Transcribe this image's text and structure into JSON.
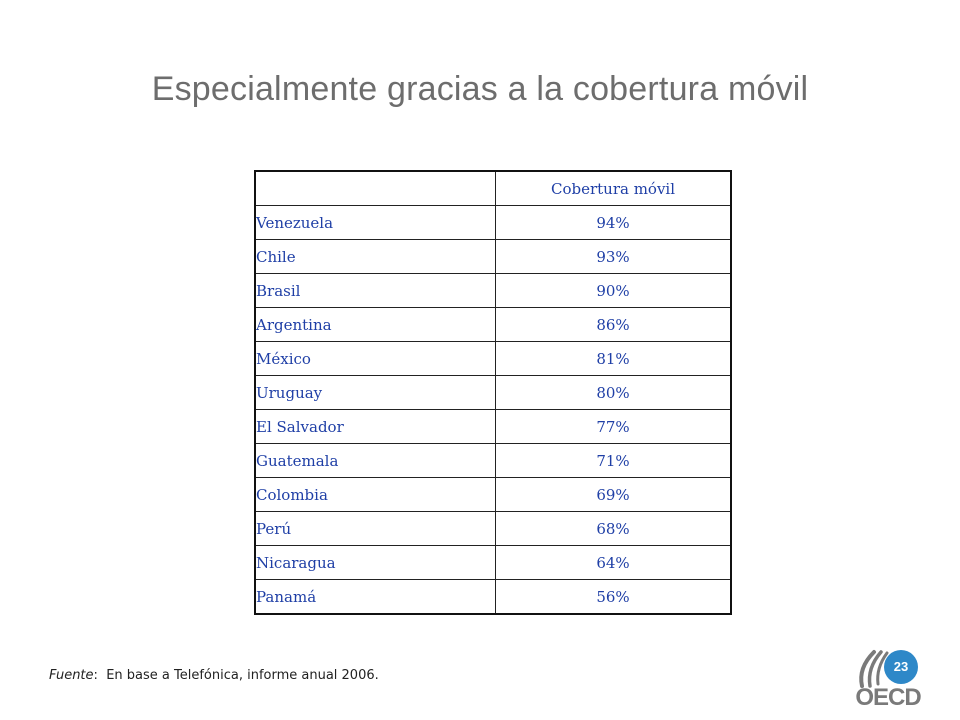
{
  "slide": {
    "title": "Especialmente gracias a la cobertura móvil",
    "page_number": "23"
  },
  "table": {
    "column_header": "Cobertura móvil",
    "rows": [
      {
        "country": "Venezuela",
        "value": "94%"
      },
      {
        "country": "Chile",
        "value": "93%"
      },
      {
        "country": "Brasil",
        "value": "90%"
      },
      {
        "country": "Argentina",
        "value": "86%"
      },
      {
        "country": "México",
        "value": "81%"
      },
      {
        "country": "Uruguay",
        "value": "80%"
      },
      {
        "country": "El Salvador",
        "value": "77%"
      },
      {
        "country": "Guatemala",
        "value": "71%"
      },
      {
        "country": "Colombia",
        "value": "69%"
      },
      {
        "country": "Perú",
        "value": "68%"
      },
      {
        "country": "Nicaragua",
        "value": "64%"
      },
      {
        "country": "Panamá",
        "value": "56%"
      }
    ]
  },
  "source": {
    "label": "Fuente",
    "text": "En base a Telefónica, informe anual 2006."
  },
  "logo": {
    "text": "OECD",
    "icon": "oecd-logo-icon"
  },
  "colors": {
    "title": "#6d6d6d",
    "table_text": "#1f3fa6",
    "badge": "#2e88c8",
    "logo": "#7a7a7a"
  }
}
